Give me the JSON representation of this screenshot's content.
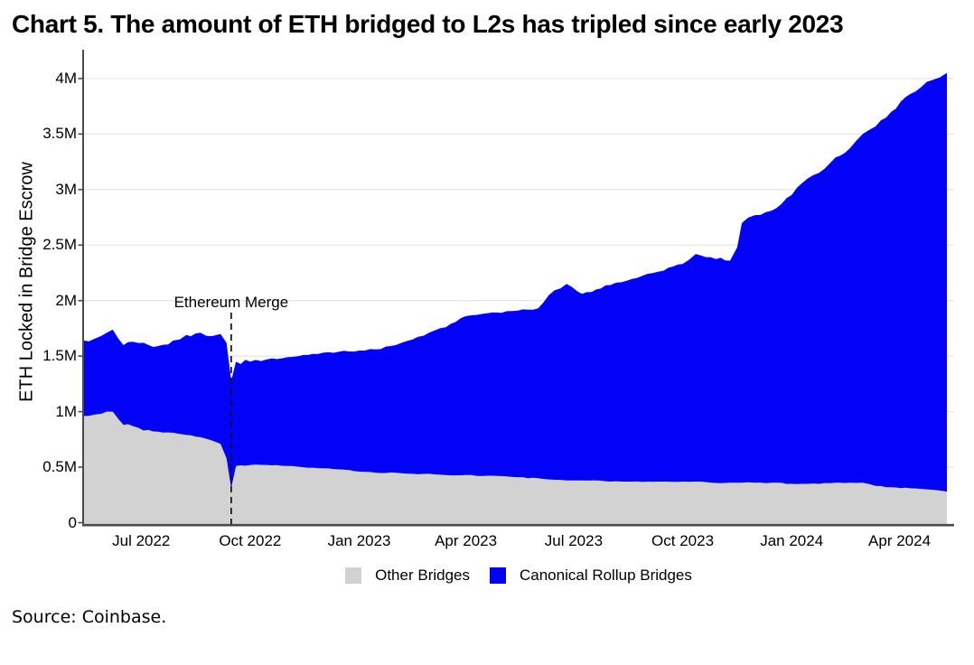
{
  "title": "Chart 5. The amount of ETH bridged to L2s has tripled since early 2023",
  "source": "Source: Coinbase.",
  "y_axis": {
    "title": "ETH Locked in Bridge Escrow",
    "ticks": [
      {
        "label": "0",
        "value": 0
      },
      {
        "label": "0.5M",
        "value": 0.5
      },
      {
        "label": "1M",
        "value": 1
      },
      {
        "label": "1.5M",
        "value": 1.5
      },
      {
        "label": "2M",
        "value": 2
      },
      {
        "label": "2.5M",
        "value": 2.5
      },
      {
        "label": "3M",
        "value": 3
      },
      {
        "label": "3.5M",
        "value": 3.5
      },
      {
        "label": "4M",
        "value": 4
      }
    ]
  },
  "x_axis": {
    "ticks": [
      {
        "label": "Jul 2022",
        "date": "2022-07-01"
      },
      {
        "label": "Oct 2022",
        "date": "2022-10-01"
      },
      {
        "label": "Jan 2023",
        "date": "2023-01-01"
      },
      {
        "label": "Apr 2023",
        "date": "2023-04-01"
      },
      {
        "label": "Jul 2023",
        "date": "2023-07-01"
      },
      {
        "label": "Oct 2023",
        "date": "2023-10-01"
      },
      {
        "label": "Jan 2024",
        "date": "2024-01-01"
      },
      {
        "label": "Apr 2024",
        "date": "2024-04-01"
      }
    ]
  },
  "annotation": {
    "label": "Ethereum Merge",
    "date": "2022-09-15"
  },
  "colors": {
    "other_bridges": "#d2d2d2",
    "canonical_rollup_bridges": "#0202f8",
    "gridline": "#e7e7e7",
    "axis": "#4a4a4a",
    "annotation_line": "#111111"
  },
  "chart_data": {
    "type": "area",
    "stacked": true,
    "title": "Chart 5. The amount of ETH bridged to L2s has tripled since early 2023",
    "xlabel": "",
    "ylabel": "ETH Locked in Bridge Escrow",
    "unit": "million ETH",
    "ylim": [
      0,
      4.27
    ],
    "grid": "horizontal",
    "legend_position": "bottom",
    "annotations": [
      {
        "label": "Ethereum Merge",
        "date": "2022-09-15"
      }
    ],
    "x": [
      "2022-05-13",
      "2022-05-28",
      "2022-06-07",
      "2022-06-16",
      "2022-06-24",
      "2022-07-03",
      "2022-07-15",
      "2022-07-28",
      "2022-08-08",
      "2022-08-20",
      "2022-08-30",
      "2022-09-06",
      "2022-09-11",
      "2022-09-15",
      "2022-09-19",
      "2022-10-01",
      "2022-10-15",
      "2022-11-01",
      "2022-11-15",
      "2022-12-01",
      "2022-12-15",
      "2023-01-01",
      "2023-01-15",
      "2023-02-01",
      "2023-02-15",
      "2023-03-01",
      "2023-03-15",
      "2023-04-01",
      "2023-04-15",
      "2023-05-01",
      "2023-05-15",
      "2023-06-01",
      "2023-06-10",
      "2023-06-25",
      "2023-07-08",
      "2023-07-20",
      "2023-08-01",
      "2023-08-15",
      "2023-09-01",
      "2023-09-15",
      "2023-10-01",
      "2023-10-12",
      "2023-10-25",
      "2023-11-10",
      "2023-11-16",
      "2023-11-20",
      "2023-12-01",
      "2023-12-15",
      "2024-01-01",
      "2024-01-10",
      "2024-01-24",
      "2024-02-07",
      "2024-02-19",
      "2024-03-01",
      "2024-03-12",
      "2024-03-25",
      "2024-04-10",
      "2024-04-24",
      "2024-05-05",
      "2024-05-11"
    ],
    "series": [
      {
        "name": "Other Bridges",
        "color": "#d2d2d2",
        "values": [
          0.96,
          0.98,
          1.0,
          0.88,
          0.87,
          0.83,
          0.82,
          0.81,
          0.79,
          0.77,
          0.74,
          0.71,
          0.58,
          0.31,
          0.51,
          0.52,
          0.52,
          0.51,
          0.5,
          0.49,
          0.48,
          0.46,
          0.45,
          0.45,
          0.44,
          0.44,
          0.43,
          0.43,
          0.42,
          0.42,
          0.41,
          0.4,
          0.39,
          0.38,
          0.38,
          0.38,
          0.37,
          0.37,
          0.37,
          0.37,
          0.37,
          0.37,
          0.36,
          0.36,
          0.36,
          0.36,
          0.36,
          0.36,
          0.35,
          0.35,
          0.35,
          0.36,
          0.36,
          0.36,
          0.33,
          0.32,
          0.31,
          0.3,
          0.29,
          0.28
        ]
      },
      {
        "name": "Canonical Rollup Bridges",
        "color": "#0202f8",
        "values": [
          0.68,
          0.7,
          0.74,
          0.72,
          0.76,
          0.79,
          0.77,
          0.83,
          0.9,
          0.94,
          0.94,
          0.99,
          1.04,
          0.97,
          0.94,
          0.93,
          0.95,
          0.98,
          1.01,
          1.04,
          1.06,
          1.09,
          1.11,
          1.15,
          1.21,
          1.27,
          1.33,
          1.43,
          1.46,
          1.47,
          1.5,
          1.53,
          1.66,
          1.77,
          1.68,
          1.72,
          1.77,
          1.81,
          1.87,
          1.9,
          1.96,
          2.05,
          2.03,
          2.0,
          2.12,
          2.34,
          2.41,
          2.45,
          2.6,
          2.71,
          2.8,
          2.93,
          3.01,
          3.14,
          3.24,
          3.38,
          3.55,
          3.67,
          3.72,
          3.77
        ]
      }
    ]
  }
}
